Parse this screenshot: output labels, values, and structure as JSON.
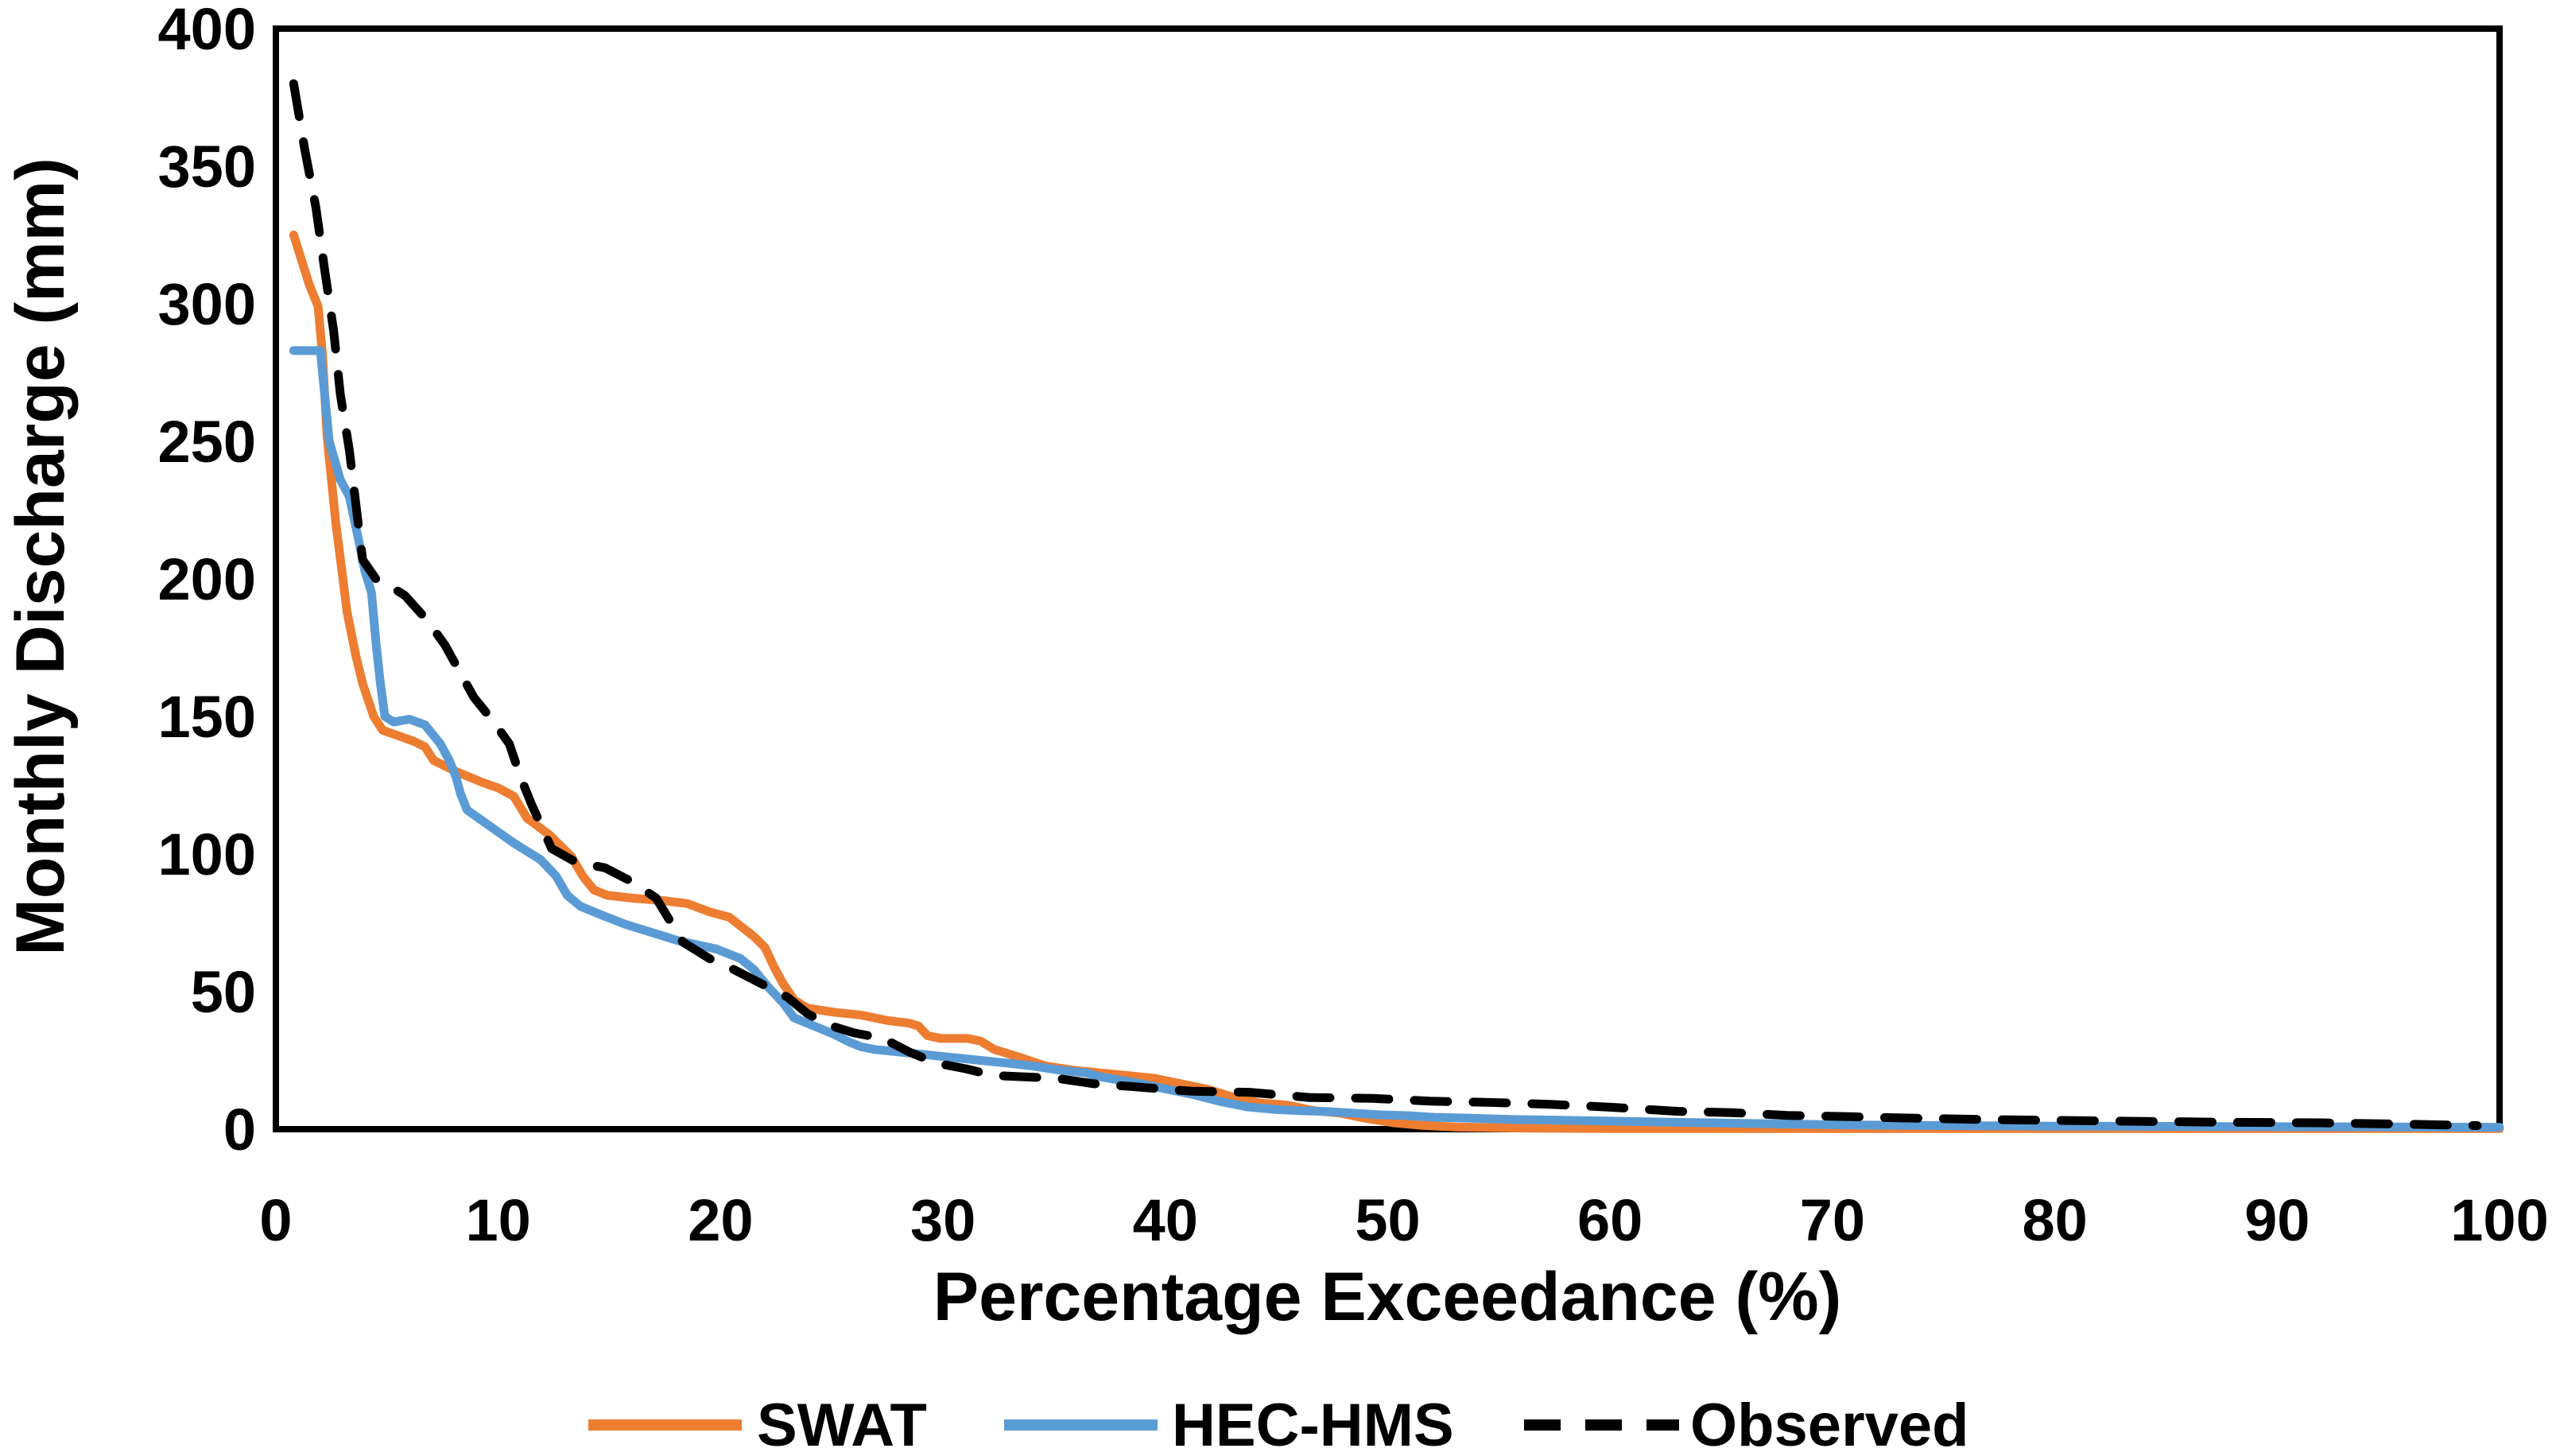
{
  "chart_data": {
    "type": "line",
    "title": "",
    "xlabel": "Percentage Exceedance (%)",
    "ylabel": "Monthly Discharge (mm)",
    "xlim": [
      0,
      100
    ],
    "ylim": [
      0,
      400
    ],
    "xticks": [
      0,
      10,
      20,
      30,
      40,
      50,
      60,
      70,
      80,
      90,
      100
    ],
    "yticks": [
      0,
      50,
      100,
      150,
      200,
      250,
      300,
      350,
      400
    ],
    "grid": false,
    "legend_position": "bottom",
    "axis_color": "#000000",
    "background_color": "#ffffff",
    "series": [
      {
        "name": "SWAT",
        "color": "#ED7D31",
        "style": "solid",
        "stroke_width": 11,
        "points": [
          [
            0.8,
            325
          ],
          [
            1.5,
            307
          ],
          [
            1.9,
            299
          ],
          [
            2.1,
            281
          ],
          [
            2.3,
            252
          ],
          [
            2.7,
            220
          ],
          [
            3.0,
            201
          ],
          [
            3.2,
            188
          ],
          [
            3.6,
            172
          ],
          [
            3.9,
            162
          ],
          [
            4.4,
            150
          ],
          [
            4.8,
            145
          ],
          [
            5.5,
            143
          ],
          [
            6.2,
            141
          ],
          [
            6.7,
            139
          ],
          [
            7.1,
            134
          ],
          [
            8.1,
            130
          ],
          [
            9.3,
            126
          ],
          [
            10.0,
            124
          ],
          [
            10.7,
            121
          ],
          [
            11.3,
            113
          ],
          [
            12.3,
            107
          ],
          [
            13.3,
            99
          ],
          [
            13.8,
            92
          ],
          [
            14.3,
            87
          ],
          [
            14.9,
            85
          ],
          [
            16.0,
            84
          ],
          [
            17.5,
            83
          ],
          [
            18.5,
            82
          ],
          [
            19.5,
            79
          ],
          [
            20.4,
            77
          ],
          [
            21.5,
            70
          ],
          [
            22.0,
            66
          ],
          [
            22.4,
            59
          ],
          [
            22.8,
            53
          ],
          [
            23.3,
            47
          ],
          [
            23.9,
            44
          ],
          [
            25.1,
            42.5
          ],
          [
            26.3,
            41.5
          ],
          [
            27.5,
            39.5
          ],
          [
            28.5,
            38.5
          ],
          [
            28.9,
            37.5
          ],
          [
            29.3,
            34
          ],
          [
            29.9,
            33
          ],
          [
            31.1,
            33
          ],
          [
            31.7,
            32
          ],
          [
            32.3,
            29
          ],
          [
            33.5,
            26
          ],
          [
            34.6,
            23
          ],
          [
            35.8,
            21.5
          ],
          [
            37.0,
            20.5
          ],
          [
            39.5,
            18.5
          ],
          [
            40.7,
            16.5
          ],
          [
            41.9,
            14.5
          ],
          [
            43.1,
            11.5
          ],
          [
            44.3,
            9.5
          ],
          [
            45.5,
            8.7
          ],
          [
            46.7,
            6.7
          ],
          [
            47.9,
            5.8
          ],
          [
            49.1,
            3.8
          ],
          [
            50.3,
            2.3
          ],
          [
            51.5,
            1.4
          ],
          [
            53.0,
            0.8
          ],
          [
            56.0,
            0.4
          ],
          [
            60.0,
            0.2
          ],
          [
            70,
            0.2
          ],
          [
            80,
            0.2
          ],
          [
            90,
            0.2
          ],
          [
            100,
            0.2
          ]
        ]
      },
      {
        "name": "HEC-HMS",
        "color": "#5B9BD5",
        "style": "solid",
        "stroke_width": 11,
        "points": [
          [
            0.8,
            283
          ],
          [
            2.0,
            283
          ],
          [
            2.4,
            250
          ],
          [
            2.9,
            236
          ],
          [
            3.3,
            230
          ],
          [
            3.7,
            215
          ],
          [
            4.0,
            203
          ],
          [
            4.3,
            195
          ],
          [
            4.5,
            177
          ],
          [
            4.7,
            162
          ],
          [
            4.9,
            150
          ],
          [
            5.3,
            148
          ],
          [
            6.0,
            149
          ],
          [
            6.7,
            147
          ],
          [
            7.0,
            144
          ],
          [
            7.4,
            140
          ],
          [
            7.8,
            134
          ],
          [
            8.1,
            128
          ],
          [
            8.3,
            122
          ],
          [
            8.6,
            116
          ],
          [
            9.3,
            112
          ],
          [
            10.0,
            108
          ],
          [
            10.7,
            104
          ],
          [
            11.9,
            98
          ],
          [
            12.6,
            92
          ],
          [
            13.1,
            85
          ],
          [
            13.7,
            81
          ],
          [
            14.6,
            78
          ],
          [
            15.7,
            74.5
          ],
          [
            16.9,
            71.5
          ],
          [
            18.1,
            68.5
          ],
          [
            19.8,
            65.5
          ],
          [
            20.9,
            62
          ],
          [
            21.5,
            58
          ],
          [
            22.1,
            52
          ],
          [
            22.8,
            46
          ],
          [
            23.3,
            40.5
          ],
          [
            23.9,
            38.5
          ],
          [
            24.5,
            36.5
          ],
          [
            25.1,
            34.5
          ],
          [
            25.7,
            32
          ],
          [
            26.3,
            30
          ],
          [
            26.9,
            29
          ],
          [
            27.5,
            28.5
          ],
          [
            28.1,
            28
          ],
          [
            29.3,
            27
          ],
          [
            30.5,
            26
          ],
          [
            31.7,
            25
          ],
          [
            32.9,
            24
          ],
          [
            34.0,
            23
          ],
          [
            35.2,
            21.5
          ],
          [
            36.4,
            20.5
          ],
          [
            37.1,
            19
          ],
          [
            38.9,
            16.5
          ],
          [
            40.1,
            14.5
          ],
          [
            41.3,
            12.5
          ],
          [
            42.5,
            10
          ],
          [
            43.7,
            8.1
          ],
          [
            44.9,
            7.2
          ],
          [
            46.1,
            6.7
          ],
          [
            47.3,
            6.4
          ],
          [
            48.5,
            5.8
          ],
          [
            49.7,
            5.2
          ],
          [
            50.9,
            4.9
          ],
          [
            52.1,
            4.3
          ],
          [
            53.3,
            4.1
          ],
          [
            54.5,
            3.8
          ],
          [
            55.8,
            3.5
          ],
          [
            58,
            3.2
          ],
          [
            63,
            2.5
          ],
          [
            67,
            2.0
          ],
          [
            71,
            1.5
          ],
          [
            75,
            1.3
          ],
          [
            80,
            1.1
          ],
          [
            85,
            1.0
          ],
          [
            90,
            0.9
          ],
          [
            95,
            0.8
          ],
          [
            100,
            0.7
          ]
        ]
      },
      {
        "name": "Observed",
        "color": "#000000",
        "style": "dashed",
        "stroke_width": 11,
        "points": [
          [
            0.8,
            380
          ],
          [
            1.3,
            356
          ],
          [
            1.8,
            335
          ],
          [
            2.2,
            312
          ],
          [
            2.6,
            290
          ],
          [
            2.9,
            267
          ],
          [
            3.3,
            247
          ],
          [
            3.6,
            227
          ],
          [
            3.9,
            207
          ],
          [
            4.5,
            200
          ],
          [
            5.2,
            197
          ],
          [
            5.8,
            194
          ],
          [
            6.8,
            185
          ],
          [
            7.6,
            176
          ],
          [
            8.9,
            157
          ],
          [
            9.8,
            148
          ],
          [
            10.5,
            140
          ],
          [
            11.0,
            128
          ],
          [
            11.5,
            118
          ],
          [
            12.4,
            102
          ],
          [
            13.5,
            97
          ],
          [
            14.8,
            95
          ],
          [
            16.0,
            90
          ],
          [
            17.1,
            84
          ],
          [
            18.3,
            68
          ],
          [
            19.5,
            62
          ],
          [
            20.6,
            58
          ],
          [
            21.8,
            53
          ],
          [
            23.0,
            48
          ],
          [
            23.9,
            42
          ],
          [
            24.8,
            38
          ],
          [
            26.0,
            35
          ],
          [
            27.3,
            33
          ],
          [
            28.5,
            28
          ],
          [
            29.7,
            24
          ],
          [
            31.0,
            22
          ],
          [
            32.3,
            19.5
          ],
          [
            33.7,
            19
          ],
          [
            35.1,
            18.5
          ],
          [
            36.8,
            16.5
          ],
          [
            38.5,
            15.5
          ],
          [
            40.0,
            14.5
          ],
          [
            41.2,
            13.8
          ],
          [
            43.8,
            13.4
          ],
          [
            46.5,
            11.5
          ],
          [
            49.3,
            11.2
          ],
          [
            51.9,
            10.2
          ],
          [
            54.7,
            9.7
          ],
          [
            57.4,
            9
          ],
          [
            60,
            8
          ],
          [
            63,
            6.5
          ],
          [
            65.5,
            6
          ],
          [
            68,
            5
          ],
          [
            71,
            4.5
          ],
          [
            73.6,
            4
          ],
          [
            77,
            3.5
          ],
          [
            82,
            3
          ],
          [
            88,
            2.5
          ],
          [
            92,
            2.3
          ],
          [
            96,
            1.8
          ],
          [
            99,
            1.3
          ]
        ]
      }
    ]
  }
}
